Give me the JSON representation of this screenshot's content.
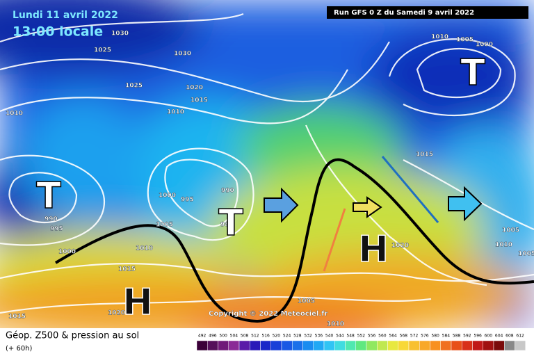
{
  "header": {
    "date": "Lundi 11 avril 2022",
    "time": "13:00 locale",
    "run": "Run GFS 0 Z du Samedi 9 avril 2022"
  },
  "map": {
    "pressure_labels": [
      "1030",
      "1025",
      "1030",
      "1025",
      "1020",
      "1015",
      "1010",
      "1010",
      "1000",
      "995",
      "990",
      "985",
      "990",
      "995",
      "1005",
      "1010",
      "1015",
      "1020",
      "1015",
      "1000",
      "1010",
      "1005",
      "1000",
      "1015",
      "1005",
      "1010",
      "1005",
      "1020",
      "1005",
      "1010"
    ],
    "centers": [
      "T",
      "T",
      "T",
      "H",
      "H"
    ],
    "copyright": "Copyright © 2022 Meteociel.fr"
  },
  "legend": {
    "title": "Géop. Z500 & pression au sol",
    "lead": "(+ 60h)",
    "scale": [
      492,
      496,
      500,
      504,
      508,
      512,
      516,
      520,
      524,
      528,
      532,
      536,
      540,
      544,
      548,
      552,
      556,
      560,
      564,
      568,
      572,
      576,
      580,
      584,
      588,
      592,
      596,
      600,
      604,
      608,
      612
    ]
  }
}
